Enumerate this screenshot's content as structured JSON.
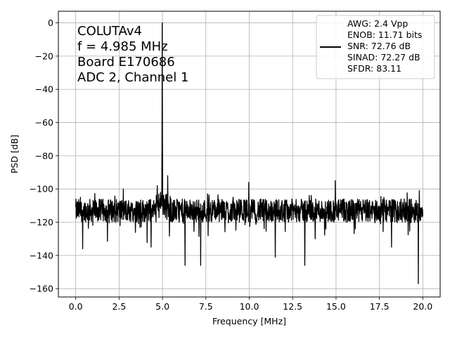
{
  "chart_data": {
    "type": "line",
    "title": "",
    "xlabel": "Frequency [MHz]",
    "ylabel": "PSD [dB]",
    "xlim": [
      -1.0,
      21.0
    ],
    "ylim": [
      -165,
      7
    ],
    "xticks": [
      0.0,
      2.5,
      5.0,
      7.5,
      10.0,
      12.5,
      15.0,
      17.5,
      20.0
    ],
    "xtick_labels": [
      "0.0",
      "2.5",
      "5.0",
      "7.5",
      "10.0",
      "12.5",
      "15.0",
      "17.5",
      "20.0"
    ],
    "yticks": [
      0,
      -20,
      -40,
      -60,
      -80,
      -100,
      -120,
      -140,
      -160
    ],
    "ytick_labels": [
      "0",
      "−20",
      "−40",
      "−60",
      "−80",
      "−100",
      "−120",
      "−140",
      "−160"
    ],
    "grid": true,
    "color": "#000000",
    "noise_floor": {
      "mean": -113,
      "band": [
        -130,
        -102
      ]
    },
    "peaks": [
      {
        "x": 4.985,
        "y": 0
      },
      {
        "x": 9.97,
        "y": -96
      },
      {
        "x": 14.96,
        "y": -95
      },
      {
        "x": 4.7,
        "y": -98
      },
      {
        "x": 5.3,
        "y": -92
      },
      {
        "x": 19.8,
        "y": -101
      }
    ],
    "dips": [
      {
        "x": 19.75,
        "y": -157
      },
      {
        "x": 13.2,
        "y": -146
      },
      {
        "x": 6.3,
        "y": -146
      },
      {
        "x": 7.2,
        "y": -146
      },
      {
        "x": 11.5,
        "y": -141
      },
      {
        "x": 0.4,
        "y": -136
      },
      {
        "x": 4.35,
        "y": -135
      },
      {
        "x": 18.2,
        "y": -135
      }
    ],
    "annotation_lines": [
      "COLUTAv4",
      "f = 4.985 MHz",
      "Board E170686",
      "ADC 2, Channel 1"
    ],
    "annotation_position": "top-left",
    "legend": {
      "placement": "top-right",
      "entries": [
        "AWG: 2.4 Vpp",
        "ENOB: 11.71 bits",
        "SNR: 72.76 dB",
        "SINAD: 72.27 dB",
        "SFDR: 83.11"
      ]
    }
  }
}
